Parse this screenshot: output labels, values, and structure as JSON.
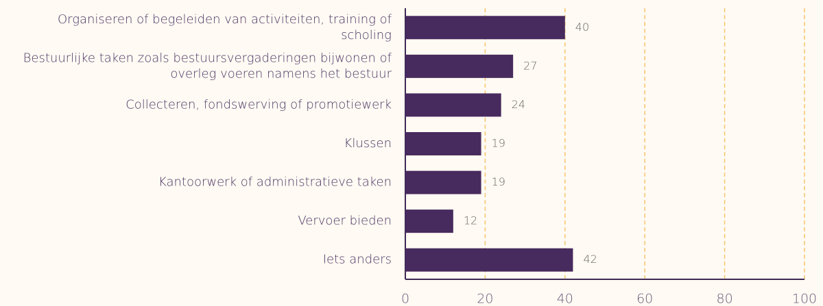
{
  "chart_data": {
    "type": "bar",
    "orientation": "horizontal",
    "categories": [
      "Organiseren of begeleiden van activiteiten, training of scholing",
      "Bestuurlijke taken zoals bestuursvergaderingen bijwonen of overleg voeren namens het bestuur",
      "Collecteren, fondswerving of promotiewerk",
      "Klussen",
      "Kantoorwerk of administratieve taken",
      "Vervoer bieden",
      "Iets anders"
    ],
    "values": [
      40,
      27,
      24,
      19,
      19,
      12,
      42
    ],
    "color": "#472a5e",
    "xlim": [
      0,
      100
    ],
    "xticks": [
      0,
      20,
      40,
      60,
      80,
      100
    ],
    "grid": true
  }
}
